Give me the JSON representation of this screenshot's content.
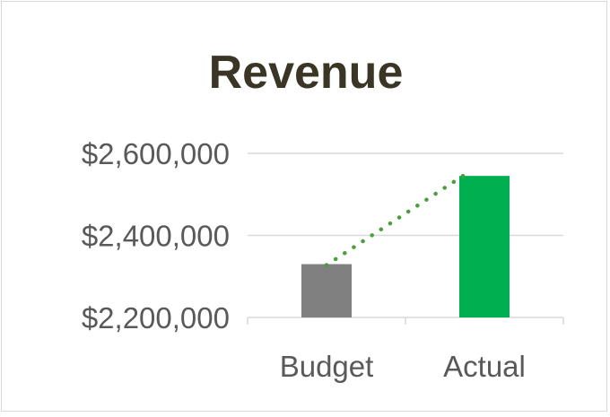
{
  "chart_data": {
    "type": "bar",
    "title": "Revenue",
    "xlabel": "",
    "ylabel": "",
    "categories": [
      "Budget",
      "Actual"
    ],
    "values": [
      2330000,
      2545000
    ],
    "bar_colors": [
      "#808080",
      "#00b050"
    ],
    "connector": {
      "style": "dotted",
      "color": "#4a9e3c",
      "from_category": "Budget",
      "to_category": "Actual"
    },
    "ylim": [
      2200000,
      2600000
    ],
    "yticks": [
      2200000,
      2400000,
      2600000
    ],
    "ytick_labels": [
      "$2,200,000",
      "$2,400,000",
      "$2,600,000"
    ],
    "grid": true,
    "legend": "none"
  }
}
